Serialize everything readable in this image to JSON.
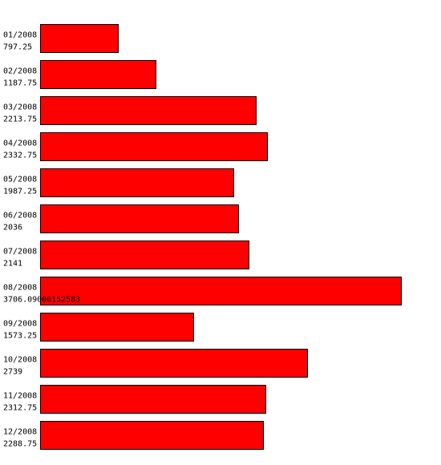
{
  "chart_data": {
    "type": "bar",
    "orientation": "horizontal",
    "categories": [
      "01/2008",
      "02/2008",
      "03/2008",
      "04/2008",
      "05/2008",
      "06/2008",
      "07/2008",
      "08/2008",
      "09/2008",
      "10/2008",
      "11/2008",
      "12/2008"
    ],
    "value_labels": [
      "797.25",
      "1187.75",
      "2213.75",
      "2332.75",
      "1987.25",
      "2036",
      "2141",
      "3706.09000152583",
      "1573.25",
      "2739",
      "2312.75",
      "2288.75"
    ],
    "values": [
      797.25,
      1187.75,
      2213.75,
      2332.75,
      1987.25,
      2036,
      2141,
      3706.09000152583,
      1573.25,
      2739,
      2312.75,
      2288.75
    ],
    "bar_color": "#ff0000",
    "outline_color": "#000000",
    "title": "",
    "xlabel": "",
    "ylabel": ""
  }
}
